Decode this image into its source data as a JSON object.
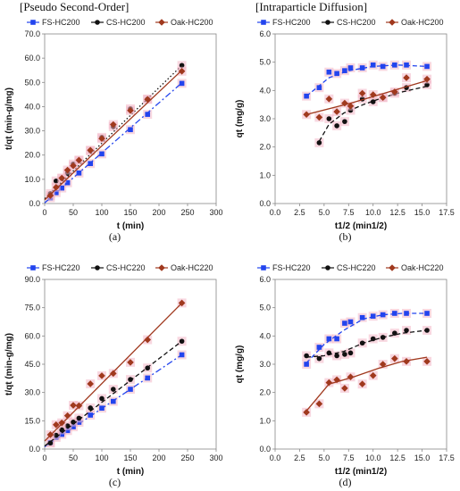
{
  "headers": [
    "[Pseudo Second-Order]",
    "[Intraparticle Diffusion]"
  ],
  "captions": [
    "(a)",
    "(b)",
    "(c)",
    "(d)"
  ],
  "colors": {
    "FS": "#2244ee",
    "CS": "#111111",
    "Oak": "#a0391e",
    "shade": "#f3b7c6"
  },
  "chart_data": [
    {
      "type": "scatter",
      "panel": "a",
      "xlabel": "t (min)",
      "ylabel": "t/qt (min-g/mg)",
      "xlim": [
        0,
        300
      ],
      "ylim": [
        0,
        70
      ],
      "xticks": [
        "0",
        "50",
        "100",
        "150",
        "200",
        "250",
        "300"
      ],
      "yticks": [
        "0.0",
        "10.0",
        "20.0",
        "30.0",
        "40.0",
        "50.0",
        "60.0",
        "70.0"
      ],
      "grid": false,
      "legend": "top-left",
      "series": [
        {
          "name": "FS-HC200",
          "marker": "square",
          "color": "#2244ee",
          "line": "dashdot",
          "x": [
            10,
            20,
            30,
            40,
            60,
            80,
            100,
            150,
            180,
            240
          ],
          "y": [
            2.4,
            4.5,
            6.4,
            8.6,
            12.6,
            16.5,
            20.5,
            30.5,
            36.8,
            49.6
          ],
          "fit": [
            [
              0,
              0.3
            ],
            [
              240,
              49.8
            ]
          ]
        },
        {
          "name": "CS-HC200",
          "marker": "circle",
          "color": "#111111",
          "line": "dotted",
          "x": [
            10,
            20,
            30,
            40,
            50,
            60,
            80,
            100,
            120,
            150,
            180,
            240
          ],
          "y": [
            4.1,
            9.3,
            10.4,
            12.5,
            16.3,
            17.8,
            21.8,
            27.3,
            31.7,
            39.1,
            43.1,
            57.0
          ],
          "fit": [
            [
              0,
              2.0
            ],
            [
              240,
              57.0
            ]
          ]
        },
        {
          "name": "Oak-HC200",
          "marker": "diamond",
          "color": "#a0391e",
          "line": "solid",
          "x": [
            10,
            20,
            30,
            40,
            50,
            60,
            80,
            100,
            120,
            150,
            180,
            240
          ],
          "y": [
            3.3,
            6.7,
            10.5,
            13.8,
            15.6,
            17.9,
            22.0,
            26.8,
            32.6,
            38.4,
            43.0,
            54.6
          ],
          "fit": [
            [
              0,
              1.5
            ],
            [
              240,
              55.0
            ]
          ]
        }
      ]
    },
    {
      "type": "scatter",
      "panel": "b",
      "xlabel": "t1/2 (min1/2)",
      "ylabel": "qt (mg/g)",
      "xlim": [
        0,
        17.5
      ],
      "ylim": [
        0,
        6
      ],
      "xticks": [
        "0.0",
        "2.5",
        "5.0",
        "7.5",
        "10.0",
        "12.5",
        "15.0",
        "17.5"
      ],
      "yticks": [
        "0.0",
        "1.0",
        "2.0",
        "3.0",
        "4.0",
        "5.0",
        "6.0"
      ],
      "grid": false,
      "legend": "top-left",
      "series": [
        {
          "name": "FS-HC200",
          "marker": "square",
          "color": "#2244ee",
          "line": "dashed",
          "x": [
            3.2,
            4.5,
            5.5,
            6.3,
            7.1,
            7.7,
            8.9,
            10.0,
            11.0,
            12.2,
            13.4,
            15.5
          ],
          "y": [
            3.8,
            4.1,
            4.65,
            4.6,
            4.7,
            4.8,
            4.8,
            4.9,
            4.85,
            4.9,
            4.9,
            4.85
          ],
          "fit": [
            [
              3.2,
              3.8
            ],
            [
              5.5,
              4.45
            ],
            [
              7.5,
              4.7
            ],
            [
              10,
              4.85
            ],
            [
              12.5,
              4.9
            ],
            [
              15.5,
              4.85
            ]
          ]
        },
        {
          "name": "CS-HC200",
          "marker": "circle",
          "color": "#111111",
          "line": "dashed",
          "x": [
            4.5,
            5.5,
            6.3,
            7.1,
            7.7,
            8.9,
            10.0,
            11.0,
            12.2,
            13.4,
            15.5
          ],
          "y": [
            2.15,
            3.0,
            2.75,
            2.9,
            3.3,
            3.7,
            3.6,
            3.75,
            3.9,
            4.1,
            4.2
          ],
          "fit": [
            [
              4.5,
              2.2
            ],
            [
              5.5,
              2.8
            ],
            [
              7,
              3.2
            ],
            [
              9,
              3.5
            ],
            [
              11,
              3.75
            ],
            [
              13,
              3.95
            ],
            [
              15.5,
              4.15
            ]
          ]
        },
        {
          "name": "Oak-HC200",
          "marker": "diamond",
          "color": "#a0391e",
          "line": "solid",
          "x": [
            3.2,
            4.5,
            5.5,
            6.3,
            7.1,
            7.7,
            8.9,
            10.0,
            11.0,
            12.2,
            13.4,
            15.5
          ],
          "y": [
            3.15,
            3.05,
            3.7,
            3.25,
            3.55,
            3.45,
            3.9,
            3.85,
            3.75,
            3.95,
            4.45,
            4.4
          ],
          "fit": [
            [
              3.2,
              3.15
            ],
            [
              7.7,
              3.55
            ],
            [
              15.5,
              4.35
            ]
          ]
        }
      ]
    },
    {
      "type": "scatter",
      "panel": "c",
      "xlabel": "t (min)",
      "ylabel": "t/qt (min-g/mg)",
      "xlim": [
        0,
        300
      ],
      "ylim": [
        0,
        90
      ],
      "xticks": [
        "0",
        "50",
        "100",
        "150",
        "200",
        "250",
        "300"
      ],
      "yticks": [
        "0.0",
        "15.0",
        "30.0",
        "45.0",
        "60.0",
        "75.0",
        "90.0"
      ],
      "grid": false,
      "legend": "top-left",
      "series": [
        {
          "name": "FS-HC220",
          "marker": "square",
          "color": "#2244ee",
          "line": "dashdot",
          "x": [
            10,
            20,
            30,
            40,
            50,
            60,
            80,
            100,
            120,
            150,
            180,
            240
          ],
          "y": [
            3.4,
            6.2,
            7.8,
            9.8,
            11.8,
            14.2,
            18.0,
            21.7,
            25.3,
            31.7,
            37.7,
            50.0
          ],
          "fit": [
            [
              0,
              1.2
            ],
            [
              240,
              50.0
            ]
          ]
        },
        {
          "name": "CS-HC220",
          "marker": "circle",
          "color": "#111111",
          "line": "dashed",
          "x": [
            10,
            20,
            30,
            40,
            50,
            60,
            80,
            100,
            120,
            150,
            180,
            240
          ],
          "y": [
            3.2,
            7.3,
            10.2,
            12.3,
            14.3,
            16.4,
            21.8,
            26.8,
            31.7,
            36.9,
            43.0,
            57.2
          ],
          "fit": [
            [
              0,
              1.6
            ],
            [
              240,
              57.2
            ]
          ]
        },
        {
          "name": "Oak-HC220",
          "marker": "diamond",
          "color": "#a0391e",
          "line": "solid",
          "x": [
            10,
            20,
            30,
            40,
            50,
            60,
            80,
            100,
            120,
            150,
            180,
            240
          ],
          "y": [
            7.6,
            12.9,
            13.9,
            17.7,
            23.2,
            23.0,
            34.6,
            38.9,
            40.1,
            46.0,
            58.0,
            77.5
          ],
          "fit": [
            [
              0,
              4.2
            ],
            [
              240,
              77.5
            ]
          ]
        }
      ]
    },
    {
      "type": "scatter",
      "panel": "d",
      "xlabel": "t1/2 (min1/2)",
      "ylabel": "qt (mg/g)",
      "xlim": [
        0,
        17.5
      ],
      "ylim": [
        0,
        6
      ],
      "xticks": [
        "0.0",
        "2.5",
        "5.0",
        "7.5",
        "10.0",
        "12.5",
        "15.0",
        "17.5"
      ],
      "yticks": [
        "0.0",
        "1.0",
        "2.0",
        "3.0",
        "4.0",
        "5.0",
        "6.0"
      ],
      "grid": false,
      "legend": "top-left",
      "series": [
        {
          "name": "FS-HC220",
          "marker": "square",
          "color": "#2244ee",
          "line": "dashed",
          "x": [
            3.2,
            4.5,
            5.5,
            6.3,
            7.1,
            7.7,
            8.9,
            10.0,
            11.0,
            12.2,
            13.4,
            15.5
          ],
          "y": [
            3.0,
            3.6,
            3.9,
            3.9,
            4.45,
            4.5,
            4.65,
            4.7,
            4.75,
            4.8,
            4.8,
            4.8
          ],
          "fit": [
            [
              3.2,
              3.05
            ],
            [
              5,
              3.7
            ],
            [
              7,
              4.2
            ],
            [
              9,
              4.6
            ],
            [
              11,
              4.75
            ],
            [
              13,
              4.8
            ],
            [
              15.5,
              4.8
            ]
          ]
        },
        {
          "name": "CS-HC220",
          "marker": "circle",
          "color": "#111111",
          "line": "dashed",
          "x": [
            3.2,
            4.5,
            5.5,
            6.3,
            7.1,
            7.7,
            8.9,
            10.0,
            11.0,
            12.2,
            13.4,
            15.5
          ],
          "y": [
            3.3,
            3.2,
            3.4,
            3.3,
            3.35,
            3.4,
            3.75,
            3.9,
            3.95,
            4.1,
            4.2,
            4.2
          ],
          "fit": [
            [
              3.2,
              3.25
            ],
            [
              5,
              3.3
            ],
            [
              7,
              3.45
            ],
            [
              9,
              3.75
            ],
            [
              11,
              3.95
            ],
            [
              13,
              4.1
            ],
            [
              15.5,
              4.2
            ]
          ]
        },
        {
          "name": "Oak-HC220",
          "marker": "diamond",
          "color": "#a0391e",
          "line": "solid",
          "x": [
            3.2,
            4.5,
            5.5,
            6.3,
            7.1,
            7.7,
            8.9,
            10.0,
            11.0,
            12.2,
            13.4,
            15.5
          ],
          "y": [
            1.3,
            1.6,
            2.35,
            2.45,
            2.15,
            2.55,
            2.3,
            2.6,
            3.0,
            3.2,
            3.1,
            3.1
          ],
          "fit": [
            [
              3.2,
              1.35
            ],
            [
              5.5,
              2.3
            ],
            [
              8,
              2.55
            ],
            [
              10.5,
              2.85
            ],
            [
              13,
              3.1
            ],
            [
              15.5,
              3.25
            ]
          ]
        }
      ]
    }
  ]
}
